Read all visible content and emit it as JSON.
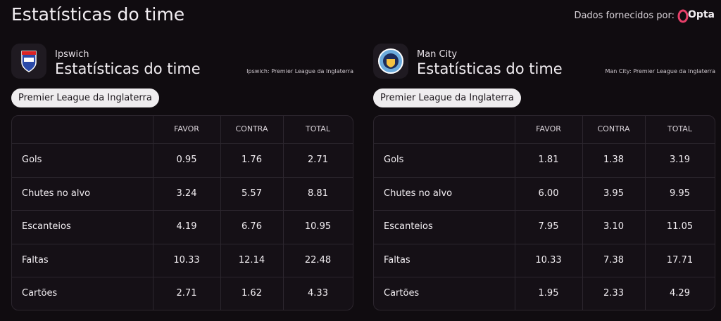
{
  "header": {
    "title": "Estatísticas do time",
    "provider_label": "Dados fornecidos por:",
    "provider_name": "Opta"
  },
  "teams": [
    {
      "name": "Ipswich",
      "title": "Estatísticas do time",
      "competition_note": "Ipswich: Premier League da Inglaterra",
      "filter": "Premier League da Inglaterra",
      "table": {
        "columns": [
          "FAVOR",
          "CONTRA",
          "TOTAL"
        ],
        "rows": [
          [
            "Gols",
            "0.95",
            "1.76",
            "2.71"
          ],
          [
            "Chutes no alvo",
            "3.24",
            "5.57",
            "8.81"
          ],
          [
            "Escanteios",
            "4.19",
            "6.76",
            "10.95"
          ],
          [
            "Faltas",
            "10.33",
            "12.14",
            "22.48"
          ],
          [
            "Cartões",
            "2.71",
            "1.62",
            "4.33"
          ]
        ]
      }
    },
    {
      "name": "Man City",
      "title": "Estatísticas do time",
      "competition_note": "Man City: Premier League da Inglaterra",
      "filter": "Premier League da Inglaterra",
      "table": {
        "columns": [
          "FAVOR",
          "CONTRA",
          "TOTAL"
        ],
        "rows": [
          [
            "Gols",
            "1.81",
            "1.38",
            "3.19"
          ],
          [
            "Chutes no alvo",
            "6.00",
            "3.95",
            "9.95"
          ],
          [
            "Escanteios",
            "7.95",
            "3.10",
            "11.05"
          ],
          [
            "Faltas",
            "10.33",
            "7.38",
            "17.71"
          ],
          [
            "Cartões",
            "1.95",
            "2.33",
            "4.29"
          ]
        ]
      }
    }
  ]
}
